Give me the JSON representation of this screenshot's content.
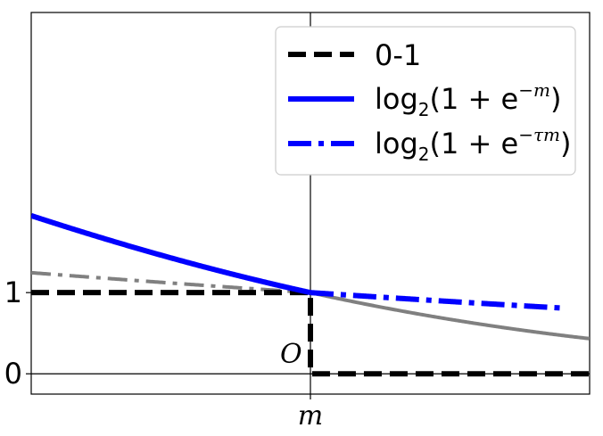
{
  "chart_data": {
    "type": "line",
    "title": "",
    "xlabel": "m",
    "ylabel": "",
    "xlim": [
      -1.05,
      1.05
    ],
    "ylim": [
      -0.25,
      4.45
    ],
    "tau": 0.3,
    "grid": false,
    "legend_position": "top-right",
    "yticks": [
      {
        "value": 0,
        "label": "0"
      },
      {
        "value": 1,
        "label": "1"
      }
    ],
    "origin_label": "O",
    "series": [
      {
        "name": "0-1",
        "style": "dashed",
        "color": "#000000",
        "points": [
          {
            "x": -1.05,
            "y": 1
          },
          {
            "x": 0,
            "y": 1
          },
          {
            "x": 0,
            "y": 0
          },
          {
            "x": 1.05,
            "y": 0
          }
        ]
      },
      {
        "name_parts": {
          "base": "log",
          "sub": "2",
          "open": "(1 + e",
          "sup": "−m",
          "close": ")"
        },
        "style": "solid",
        "color": "#0000ff",
        "formula": "log2(1+exp(-m))",
        "visible_on": "m <= 0",
        "ghost_color": "#808080"
      },
      {
        "name_parts": {
          "base": "log",
          "sub": "2",
          "open": "(1 + e",
          "sup": "−τm",
          "close": ")"
        },
        "style": "dashdot",
        "color": "#0000ff",
        "formula": "log2(1+exp(-tau*m))",
        "visible_on": "m >= 0",
        "ghost_color": "#808080"
      }
    ]
  }
}
